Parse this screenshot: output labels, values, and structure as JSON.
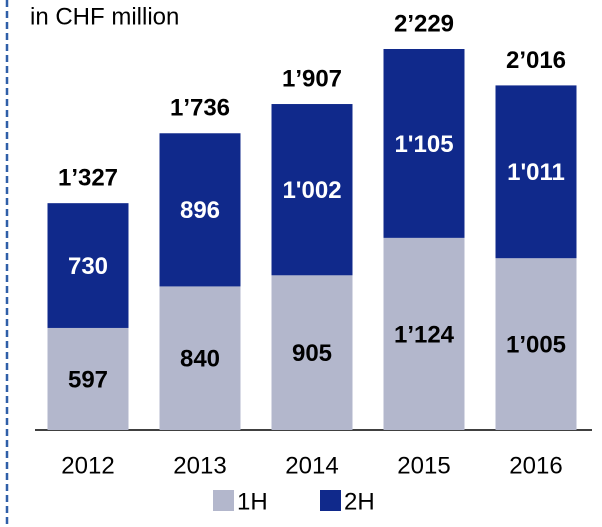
{
  "chart_data": {
    "type": "stacked-bar",
    "subtitle": "in CHF million",
    "categories": [
      "2012",
      "2013",
      "2014",
      "2015",
      "2016"
    ],
    "series": [
      {
        "name": "1H",
        "color": "#b3b7cc",
        "values": [
          597,
          840,
          905,
          1124,
          1005
        ],
        "value_labels": [
          "597",
          "840",
          "905",
          "1’124",
          "1’005"
        ]
      },
      {
        "name": "2H",
        "color": "#10298b",
        "values": [
          730,
          896,
          1002,
          1105,
          1011
        ],
        "value_labels": [
          "730",
          "896",
          "1'002",
          "1'105",
          "1'011"
        ]
      }
    ],
    "totals": [
      1327,
      1736,
      1907,
      2229,
      2016
    ],
    "total_labels": [
      "1’327",
      "1’736",
      "1’907",
      "2’229",
      "2’016"
    ]
  }
}
